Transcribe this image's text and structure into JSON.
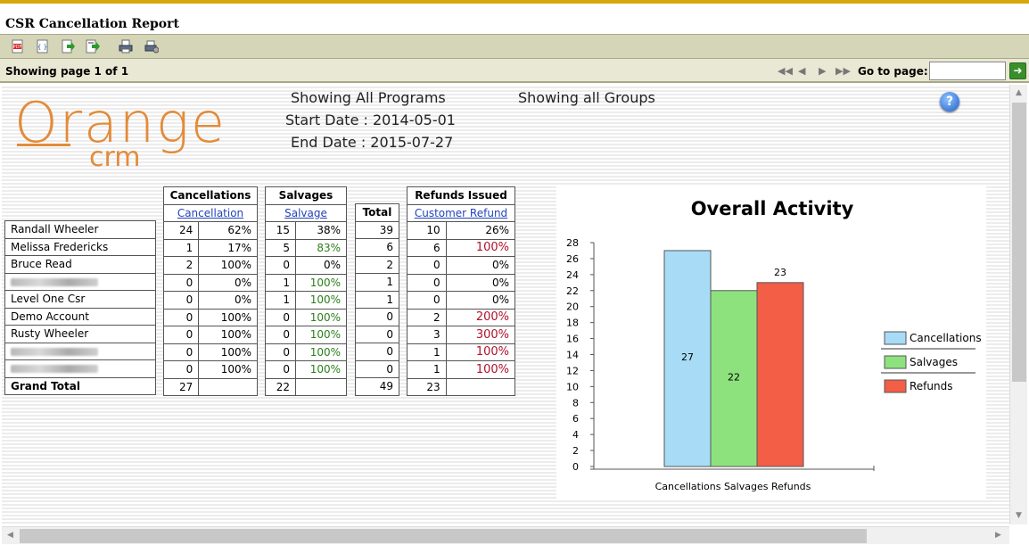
{
  "title": "CSR Cancellation Report",
  "toolbar": {
    "icons": [
      "pdf-export-icon",
      "xml-export-icon",
      "export-icon",
      "export-all-icon",
      "print-icon",
      "print-setup-icon"
    ]
  },
  "pager": {
    "showing_label": "Showing page  1  of  1",
    "goto_label": "Go to page:",
    "goto_value": ""
  },
  "report": {
    "logo_primary": "Orange",
    "logo_secondary": "crm",
    "programs": "Showing All Programs",
    "groups": "Showing all Groups",
    "start_date": "Start Date : 2014-05-01",
    "end_date": "End Date : 2015-07-27"
  },
  "table": {
    "group_headers": {
      "cancellations": "Cancellations",
      "salvages": "Salvages",
      "refunds": "Refunds Issued"
    },
    "sub_headers": {
      "cancellation": "Cancellation",
      "salvage": "Salvage",
      "total": "Total",
      "customer_refund": "Customer Refund"
    },
    "rows": [
      {
        "name": "Randall Wheeler",
        "c": "24",
        "cp": "62%",
        "s": "15",
        "sp": "38%",
        "t": "39",
        "r": "10",
        "rp": "26%",
        "sp_color": "",
        "rp_color": ""
      },
      {
        "name": "Melissa Fredericks",
        "c": "1",
        "cp": "17%",
        "s": "5",
        "sp": "83%",
        "t": "6",
        "r": "6",
        "rp": "100%",
        "sp_color": "green",
        "rp_color": "red"
      },
      {
        "name": "Bruce Read",
        "c": "2",
        "cp": "100%",
        "s": "0",
        "sp": "0%",
        "t": "2",
        "r": "0",
        "rp": "0%",
        "sp_color": "",
        "rp_color": ""
      },
      {
        "name": "",
        "c": "0",
        "cp": "0%",
        "s": "1",
        "sp": "100%",
        "t": "1",
        "r": "0",
        "rp": "0%",
        "sp_color": "green",
        "rp_color": ""
      },
      {
        "name": "Level One Csr",
        "c": "0",
        "cp": "0%",
        "s": "1",
        "sp": "100%",
        "t": "1",
        "r": "0",
        "rp": "0%",
        "sp_color": "green",
        "rp_color": ""
      },
      {
        "name": "Demo Account",
        "c": "0",
        "cp": "100%",
        "s": "0",
        "sp": "100%",
        "t": "0",
        "r": "2",
        "rp": "200%",
        "sp_color": "green",
        "rp_color": "red"
      },
      {
        "name": "Rusty Wheeler",
        "c": "0",
        "cp": "100%",
        "s": "0",
        "sp": "100%",
        "t": "0",
        "r": "3",
        "rp": "300%",
        "sp_color": "green",
        "rp_color": "red"
      },
      {
        "name": "",
        "c": "0",
        "cp": "100%",
        "s": "0",
        "sp": "100%",
        "t": "0",
        "r": "1",
        "rp": "100%",
        "sp_color": "green",
        "rp_color": "red"
      },
      {
        "name": "",
        "c": "0",
        "cp": "100%",
        "s": "0",
        "sp": "100%",
        "t": "0",
        "r": "1",
        "rp": "100%",
        "sp_color": "green",
        "rp_color": "red"
      }
    ],
    "grand_total": {
      "label": "Grand Total",
      "c": "27",
      "s": "22",
      "t": "49",
      "r": "23"
    }
  },
  "chart_data": {
    "type": "bar",
    "title": "Overall Activity",
    "xlabel": "Cancellations Salvages Refunds",
    "ylabel": "",
    "ylim": [
      0,
      28
    ],
    "yticks": [
      0,
      2,
      4,
      6,
      8,
      10,
      12,
      14,
      16,
      18,
      20,
      22,
      24,
      26,
      28
    ],
    "grid": false,
    "legend_position": "right",
    "series": [
      {
        "name": "Cancellations",
        "values": [
          27
        ],
        "color": "#a8dcf6",
        "label_inside": true
      },
      {
        "name": "Salvages",
        "values": [
          22
        ],
        "color": "#8ee27e",
        "label_inside": true
      },
      {
        "name": "Refunds",
        "values": [
          23
        ],
        "color": "#f25e46",
        "label_inside": false
      }
    ]
  }
}
